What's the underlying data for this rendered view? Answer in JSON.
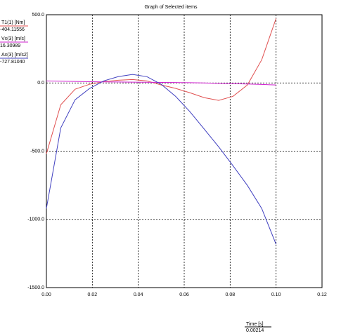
{
  "chart_data": {
    "type": "line",
    "title": "Graph of Selected items",
    "xlabel": "Time [s]",
    "cursor_x": 0.00214,
    "x": [
      0,
      0.00625,
      0.0125,
      0.01875,
      0.025,
      0.03125,
      0.0375,
      0.04375,
      0.05,
      0.05625,
      0.0625,
      0.06875,
      0.075,
      0.08125,
      0.0875,
      0.09375,
      0.1
    ],
    "series": [
      {
        "name": "T1(1) [Nm]",
        "color": "#e05050",
        "readout": -404.11556,
        "values": [
          -519,
          -160,
          -46,
          -10,
          10,
          20,
          25,
          15,
          -15,
          -40,
          -72,
          -108,
          -128,
          -98,
          -15,
          170,
          473
        ]
      },
      {
        "name": "Vx(3) [m/s]",
        "color": "#d020d0",
        "readout": 16.30989,
        "values": [
          15,
          13,
          11,
          9,
          8,
          7,
          6,
          5,
          4,
          3,
          2,
          0,
          -3,
          -5,
          -8,
          -11,
          -15
        ]
      },
      {
        "name": "Ax(3) [m/s2]",
        "color": "#4040c0",
        "readout": {
          "value": -727.8104,
          "label": "-727.81040"
        },
        "values": [
          -920,
          -330,
          -123,
          -41,
          15,
          46,
          62,
          46,
          -10,
          -98,
          -211,
          -339,
          -468,
          -607,
          -751,
          -920,
          -1183
        ]
      }
    ],
    "xlim": [
      0,
      0.12
    ],
    "xticks": [
      {
        "value": 0,
        "label": "0.00"
      },
      {
        "value": 0.02,
        "label": "0.02"
      },
      {
        "value": 0.04,
        "label": "0.04"
      },
      {
        "value": 0.06,
        "label": "0.06"
      },
      {
        "value": 0.08,
        "label": "0.08"
      },
      {
        "value": 0.1,
        "label": "0.10"
      },
      {
        "value": 0.12,
        "label": "0.12"
      }
    ],
    "ylim": [
      -1500,
      500
    ],
    "yticks": [
      {
        "value": -1500,
        "label": "-1500.0"
      },
      {
        "value": -1000,
        "label": "-1000.0"
      },
      {
        "value": -500,
        "label": "-500.0"
      },
      {
        "value": 0,
        "label": "0.0"
      },
      {
        "value": 500,
        "label": "500.0"
      }
    ],
    "grid": true
  }
}
